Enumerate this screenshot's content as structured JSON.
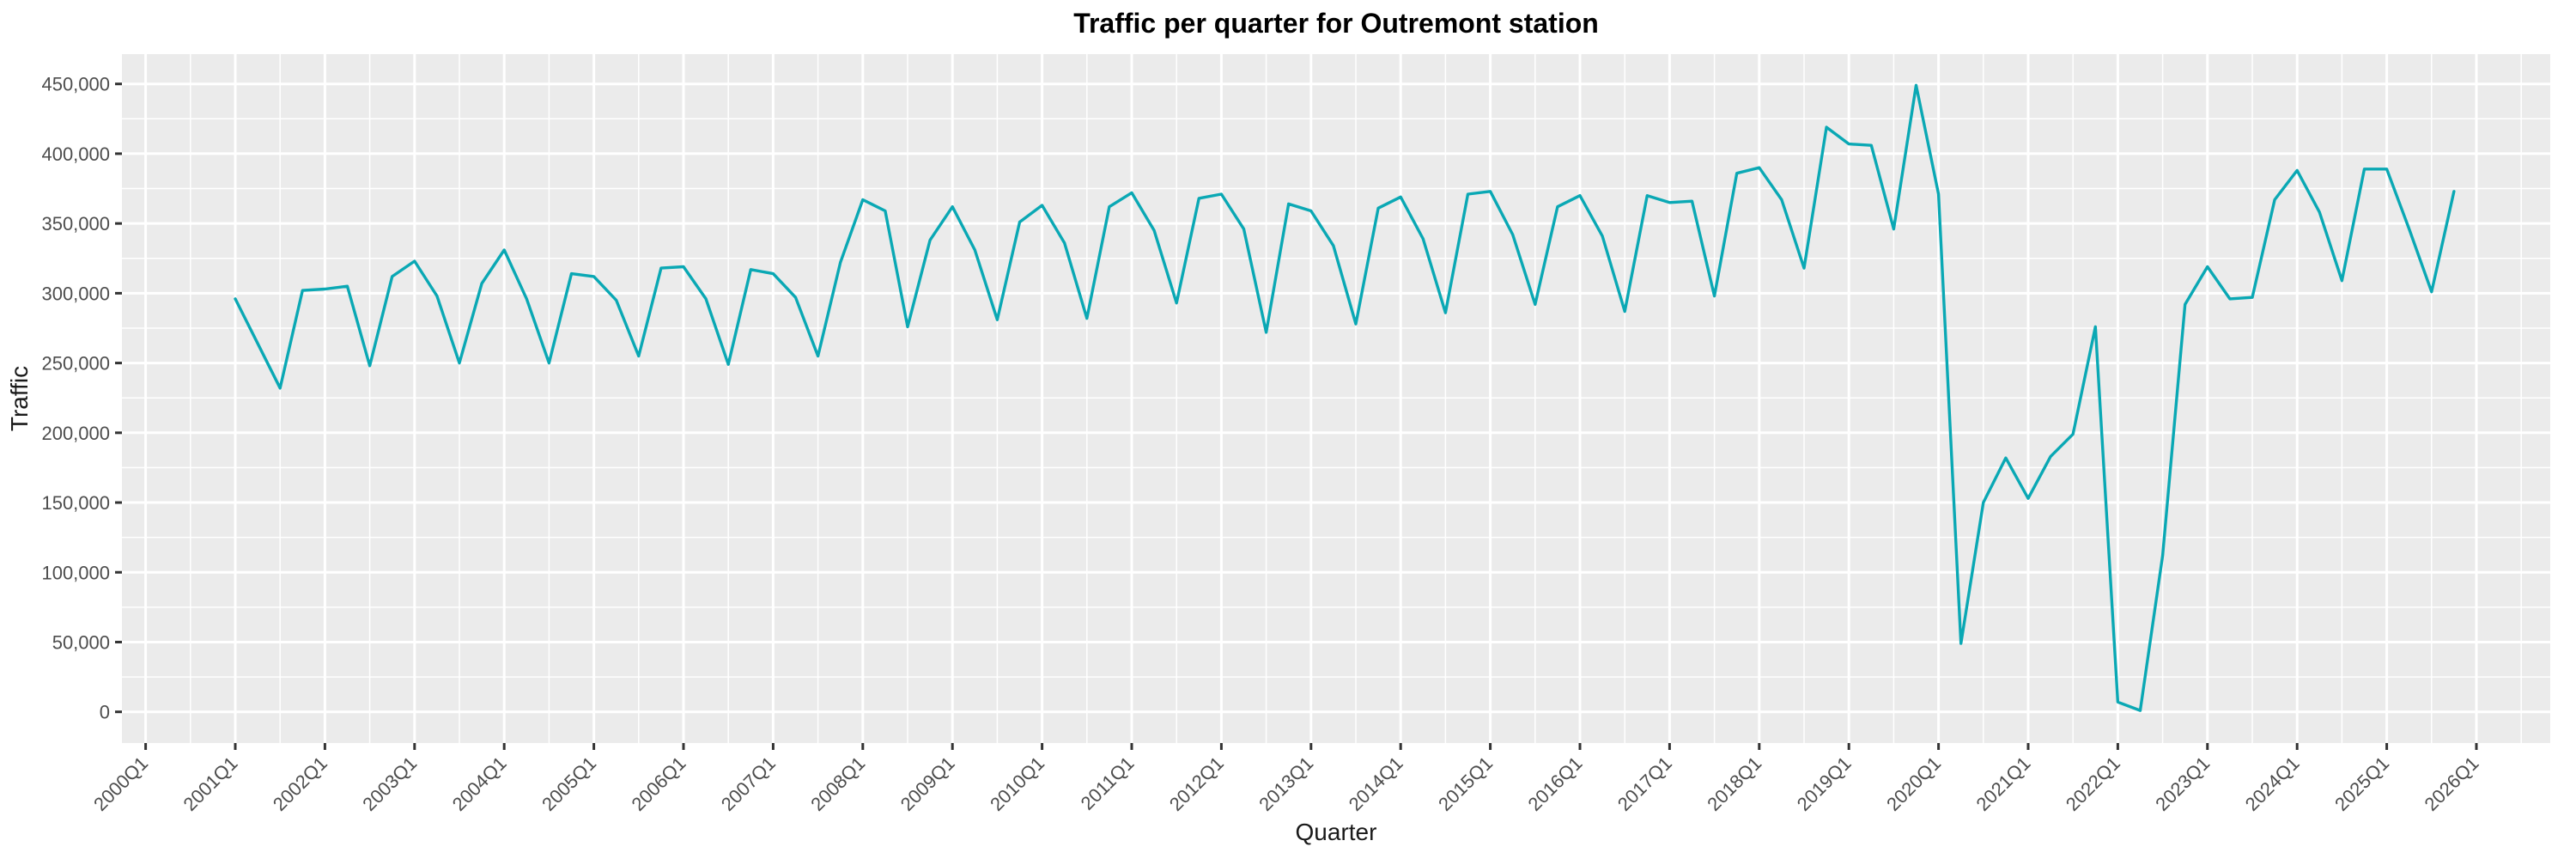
{
  "window": {
    "title": "Traffic per quarter for Outremont station"
  },
  "colors": {
    "line": "#0AA8B4",
    "panel_background": "#EBEBEB",
    "outer_background": "#FFFFFF",
    "gridline": "#FFFFFF",
    "tick_mark": "#333333",
    "tick_text": "#4D4D4D",
    "title_text": "#000000"
  },
  "chart_data": {
    "type": "line",
    "title": "Traffic per quarter for Outremont station",
    "xlabel": "Quarter",
    "ylabel": "Traffic",
    "legend": "none",
    "grid": "white major and minor gridlines on gray panel",
    "ylim": [
      0,
      450000
    ],
    "y_axis_tick_values": [
      0,
      50000,
      100000,
      150000,
      200000,
      250000,
      300000,
      350000,
      400000,
      450000
    ],
    "x_axis_tick_labels": [
      "2000Q1",
      "2001Q1",
      "2002Q1",
      "2003Q1",
      "2004Q1",
      "2005Q1",
      "2006Q1",
      "2007Q1",
      "2008Q1",
      "2009Q1",
      "2010Q1",
      "2011Q1",
      "2012Q1",
      "2013Q1",
      "2014Q1",
      "2015Q1",
      "2016Q1",
      "2017Q1",
      "2018Q1",
      "2019Q1",
      "2020Q1",
      "2021Q1",
      "2022Q1",
      "2023Q1",
      "2024Q1",
      "2025Q1",
      "2026Q1"
    ],
    "series_name": "traffic",
    "x": [
      "2001Q1",
      "2001Q2",
      "2001Q3",
      "2001Q4",
      "2002Q1",
      "2002Q2",
      "2002Q3",
      "2002Q4",
      "2003Q1",
      "2003Q2",
      "2003Q3",
      "2003Q4",
      "2004Q1",
      "2004Q2",
      "2004Q3",
      "2004Q4",
      "2005Q1",
      "2005Q2",
      "2005Q3",
      "2005Q4",
      "2006Q1",
      "2006Q2",
      "2006Q3",
      "2006Q4",
      "2007Q1",
      "2007Q2",
      "2007Q3",
      "2007Q4",
      "2008Q1",
      "2008Q2",
      "2008Q3",
      "2008Q4",
      "2009Q1",
      "2009Q2",
      "2009Q3",
      "2009Q4",
      "2010Q1",
      "2010Q2",
      "2010Q3",
      "2010Q4",
      "2011Q1",
      "2011Q2",
      "2011Q3",
      "2011Q4",
      "2012Q1",
      "2012Q2",
      "2012Q3",
      "2012Q4",
      "2013Q1",
      "2013Q2",
      "2013Q3",
      "2013Q4",
      "2014Q1",
      "2014Q2",
      "2014Q3",
      "2014Q4",
      "2015Q1",
      "2015Q2",
      "2015Q3",
      "2015Q4",
      "2016Q1",
      "2016Q2",
      "2016Q3",
      "2016Q4",
      "2017Q1",
      "2017Q2",
      "2017Q3",
      "2017Q4",
      "2018Q1",
      "2018Q2",
      "2018Q3",
      "2018Q4",
      "2019Q1",
      "2019Q2",
      "2019Q3",
      "2019Q4",
      "2020Q1",
      "2020Q2",
      "2020Q3",
      "2020Q4",
      "2021Q1",
      "2021Q2",
      "2021Q3",
      "2021Q4",
      "2022Q1",
      "2022Q2",
      "2022Q3",
      "2022Q4",
      "2023Q1",
      "2023Q2",
      "2023Q3",
      "2023Q4",
      "2024Q1",
      "2024Q2",
      "2024Q3",
      "2024Q4",
      "2025Q1",
      "2025Q2",
      "2025Q3",
      "2025Q4"
    ],
    "values": [
      296000,
      264000,
      232000,
      302000,
      303000,
      305000,
      248000,
      312000,
      323000,
      298000,
      250000,
      307000,
      331000,
      296000,
      250000,
      314000,
      312000,
      295000,
      255000,
      318000,
      319000,
      296000,
      249000,
      317000,
      314000,
      297000,
      255000,
      322000,
      367000,
      359000,
      276000,
      338000,
      362000,
      331000,
      281000,
      351000,
      363000,
      336000,
      282000,
      362000,
      372000,
      345000,
      293000,
      368000,
      371000,
      346000,
      272000,
      364000,
      359000,
      334000,
      278000,
      361000,
      369000,
      339000,
      286000,
      371000,
      373000,
      342000,
      292000,
      362000,
      370000,
      341000,
      287000,
      370000,
      365000,
      366000,
      298000,
      386000,
      390000,
      367000,
      318000,
      419000,
      407000,
      406000,
      346000,
      449000,
      371000,
      49000,
      150000,
      182000,
      153000,
      183000,
      199000,
      276000,
      7000,
      1000,
      112000,
      292000,
      319000,
      296000,
      297000,
      367000,
      388000,
      358000,
      309000,
      389000,
      389000,
      346000,
      301000,
      373000
    ]
  }
}
